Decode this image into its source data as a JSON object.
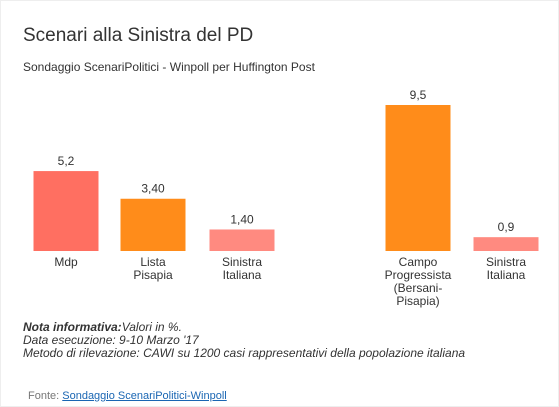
{
  "title": "Scenari alla Sinistra del PD",
  "subtitle": "Sondaggio ScenariPolitici - Winpoll per Huffington Post",
  "notes": {
    "informativa_label": "Nota informativa:",
    "informativa_text": "Valori in %.",
    "data_esecuzione": "Data esecuzione: 9-10 Marzo '17",
    "metodo": "Metodo di rilevazione: CAWI su 1200 casi rappresentativi della popolazione italiana"
  },
  "source": {
    "label": "Fonte:",
    "link_text": "Sondaggio ScenariPolitici-Winpoll"
  },
  "colors": {
    "salmon": "#ff6f61",
    "orange": "#ff8c1a",
    "light_salmon": "#ff8a80"
  },
  "chart_data": {
    "type": "bar",
    "groups": [
      {
        "bars": [
          {
            "category": "Mdp",
            "value": 5.2,
            "label": "5,2",
            "color": "#ff6f61"
          },
          {
            "category": "Lista Pisapia",
            "value": 3.4,
            "label": "3,40",
            "color": "#ff8c1a"
          },
          {
            "category": "Sinistra Italiana",
            "value": 1.4,
            "label": "1,40",
            "color": "#ff8a80"
          }
        ]
      },
      {
        "bars": [
          {
            "category": "Campo Progressista (Bersani- Pisapia)",
            "value": 9.5,
            "label": "9,5",
            "color": "#ff8c1a"
          },
          {
            "category": "Sinistra Italiana",
            "value": 0.9,
            "label": "0,9",
            "color": "#ff8a80"
          }
        ]
      }
    ],
    "ylim": [
      0,
      9.5
    ]
  }
}
